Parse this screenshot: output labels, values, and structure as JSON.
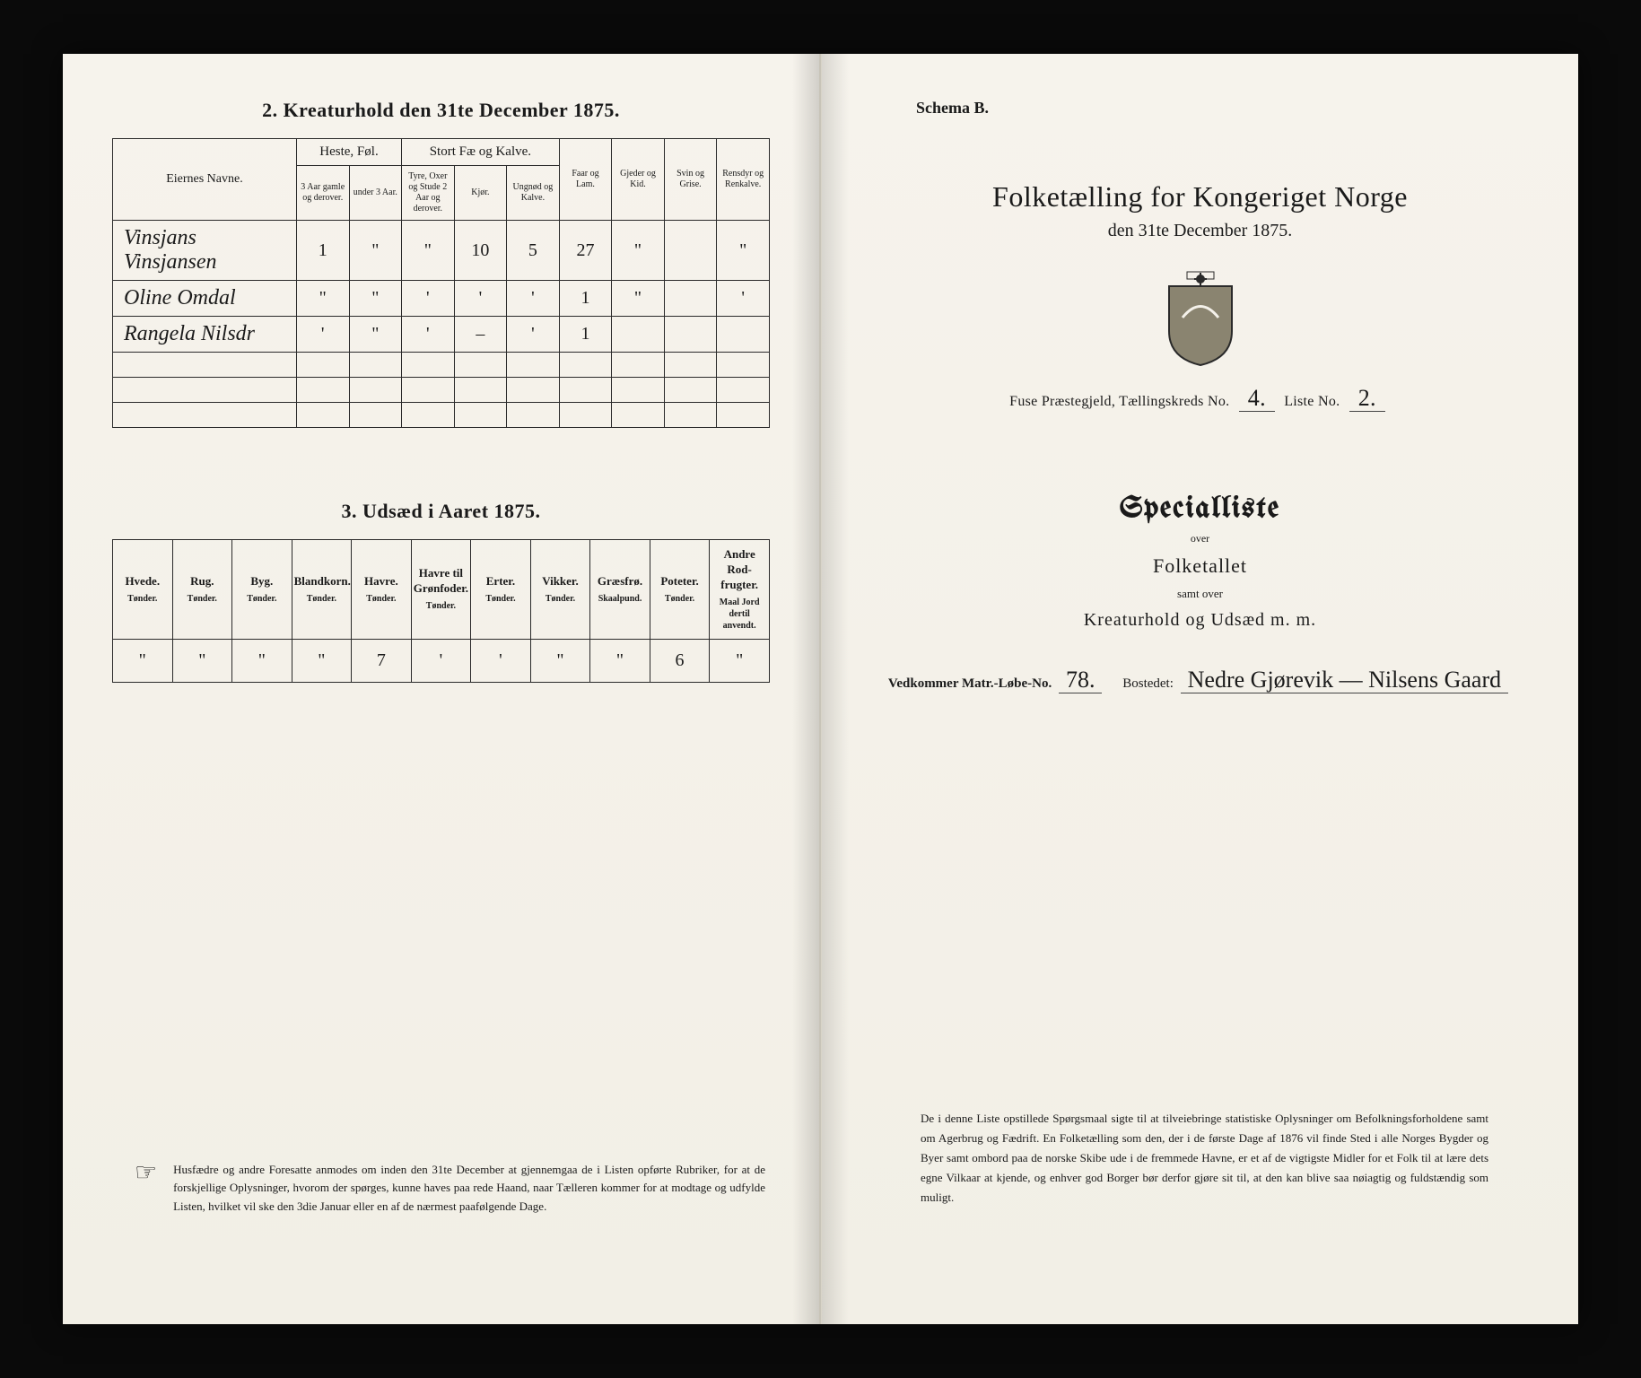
{
  "left": {
    "section2_title": "2.  Kreaturhold den 31te December 1875.",
    "kreatur": {
      "col_name": "Eiernes Navne.",
      "group_heste": "Heste, Føl.",
      "group_stort": "Stort Fæ og Kalve.",
      "col_faar": "Faar og Lam.",
      "col_gjeder": "Gjeder og Kid.",
      "col_svin": "Svin og Grise.",
      "col_rensdyr": "Rensdyr og Renkalve.",
      "sub_heste1": "3 Aar gamle og derover.",
      "sub_heste2": "under 3 Aar.",
      "sub_stort1": "Tyre, Oxer og Stude 2 Aar og derover.",
      "sub_stort2": "Kjør.",
      "sub_stort3": "Ungnød og Kalve.",
      "rows": [
        {
          "name": "Vinsjans Vinsjansen",
          "vals": [
            "1",
            "\"",
            "\"",
            "10",
            "5",
            "27",
            "\"",
            "",
            "\""
          ]
        },
        {
          "name": "Oline Omdal",
          "vals": [
            "\"",
            "\"",
            "'",
            "'",
            "'",
            "1",
            "\"",
            "",
            "'"
          ]
        },
        {
          "name": "Rangela Nilsdr",
          "vals": [
            "'",
            "\"",
            "'",
            "–",
            "'",
            "1",
            "",
            "",
            ""
          ]
        }
      ]
    },
    "section3_title": "3.  Udsæd i Aaret 1875.",
    "udsaed": {
      "cols": [
        {
          "h": "Hvede.",
          "u": "Tønder."
        },
        {
          "h": "Rug.",
          "u": "Tønder."
        },
        {
          "h": "Byg.",
          "u": "Tønder."
        },
        {
          "h": "Blandkorn.",
          "u": "Tønder."
        },
        {
          "h": "Havre.",
          "u": "Tønder."
        },
        {
          "h": "Havre til Grønfoder.",
          "u": "Tønder."
        },
        {
          "h": "Erter.",
          "u": "Tønder."
        },
        {
          "h": "Vikker.",
          "u": "Tønder."
        },
        {
          "h": "Græsfrø.",
          "u": "Skaalpund."
        },
        {
          "h": "Poteter.",
          "u": "Tønder."
        },
        {
          "h": "Andre Rod-frugter.",
          "u": "Maal Jord dertil anvendt."
        }
      ],
      "values": [
        "\"",
        "\"",
        "\"",
        "\"",
        "7",
        "'",
        "'",
        "\"",
        "\"",
        "6",
        "\""
      ]
    },
    "footnote": "Husfædre og andre Foresatte anmodes om inden den 31te December at gjennemgaa de i Listen opførte Rubriker, for at de forskjellige Oplysninger, hvorom der spørges, kunne haves paa rede Haand, naar Tælleren kommer for at modtage og udfylde Listen, hvilket vil ske den 3die Januar eller en af de nærmest paafølgende Dage."
  },
  "right": {
    "schema": "Schema B.",
    "title": "Folketælling for Kongeriget Norge",
    "date": "den 31te December 1875.",
    "parish_prefix": "Fuse Præstegjeld, Tællingskreds No.",
    "kreds_no": "4.",
    "liste_label": "Liste No.",
    "liste_no": "2.",
    "specialliste": "Specialliste",
    "over": "over",
    "folketallet": "Folketallet",
    "samtover": "samt over",
    "kreatur_line": "Kreaturhold og Udsæd m. m.",
    "vedk_label": "Vedkommer Matr.-Løbe-No.",
    "matr_no": "78.",
    "bostedet_label": "Bostedet:",
    "bostedet": "Nedre Gjørevik — Nilsens Gaard",
    "footnote": "De i denne Liste opstillede Spørgsmaal sigte til at tilveiebringe statistiske Oplysninger om Befolkningsforholdene samt om Agerbrug og Fædrift. En Folketælling som den, der i de første Dage af 1876 vil finde Sted i alle Norges Bygder og Byer samt ombord paa de norske Skibe ude i de fremmede Havne, er et af de vigtigste Midler for et Folk til at lære dets egne Vilkaar at kjende, og enhver god Borger bør derfor gjøre sit til, at den kan blive saa nøiagtig og fuldstændig som muligt."
  },
  "colors": {
    "paper": "#f4f1ea",
    "ink": "#1a1a1a",
    "border": "#2a2a2a",
    "bg": "#0a0a0a"
  }
}
